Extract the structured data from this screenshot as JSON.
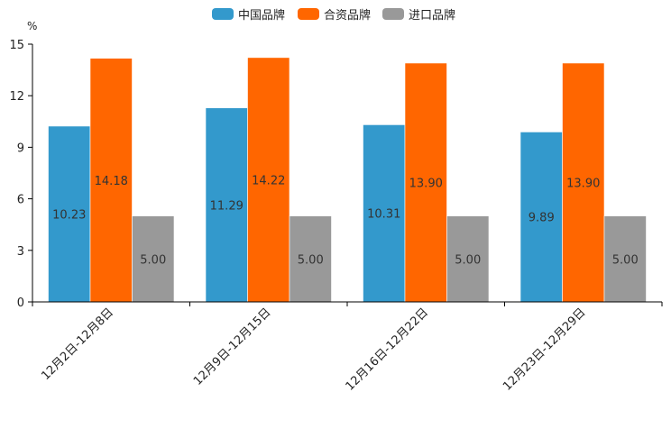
{
  "chart_data": {
    "type": "bar",
    "unit": "%",
    "categories": [
      "12月2日-12月8日",
      "12月9日-12月15日",
      "12月16日-12月22日",
      "12月23日-12月29日"
    ],
    "series": [
      {
        "name": "中国品牌",
        "color": "#3399cc",
        "values": [
          10.23,
          11.29,
          10.31,
          9.89
        ],
        "labels": [
          "10.23",
          "11.29",
          "10.31",
          "9.89"
        ]
      },
      {
        "name": "合资品牌",
        "color": "#ff6600",
        "values": [
          14.18,
          14.22,
          13.9,
          13.9
        ],
        "labels": [
          "14.18",
          "14.22",
          "13.90",
          "13.90"
        ]
      },
      {
        "name": "进口品牌",
        "color": "#999999",
        "values": [
          5.0,
          5.0,
          5.0,
          5.0
        ],
        "labels": [
          "5.00",
          "5.00",
          "5.00",
          "5.00"
        ]
      }
    ],
    "yticks": [
      0,
      3,
      6,
      9,
      12,
      15
    ],
    "ylim": [
      0,
      15
    ],
    "legend_position": "top-center"
  }
}
